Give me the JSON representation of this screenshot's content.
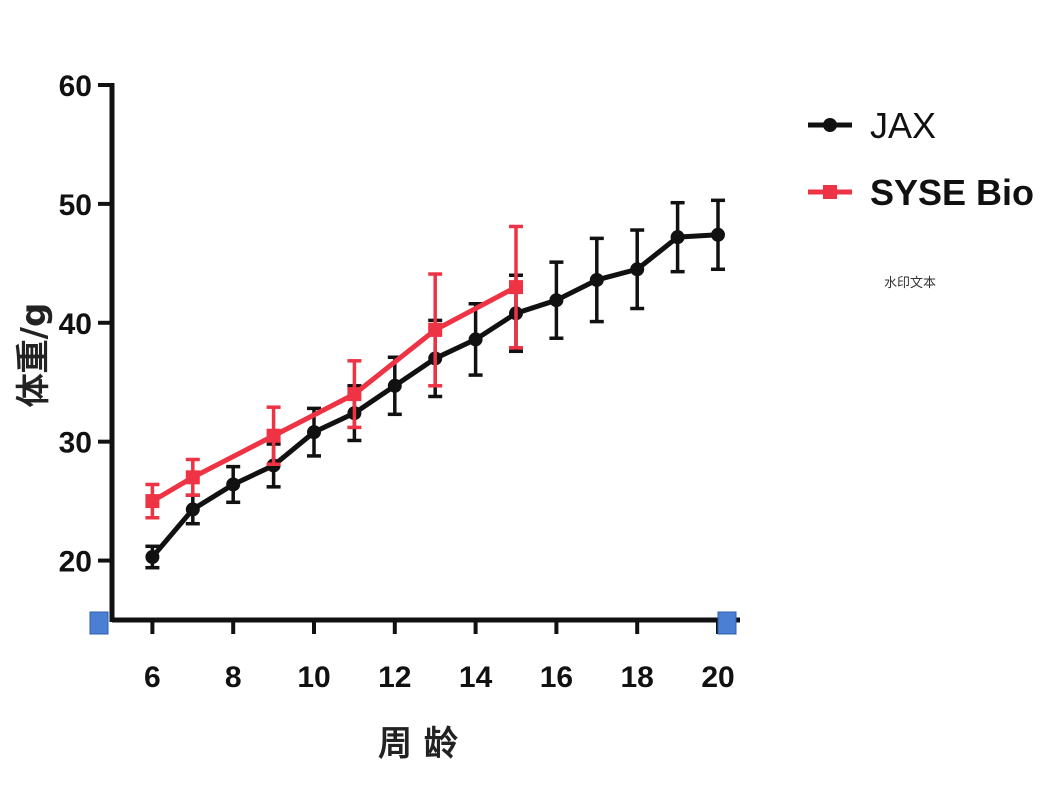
{
  "chart_data": {
    "type": "line",
    "xlabel": "周 龄",
    "ylabel": "体重/g",
    "x_ticks": [
      6,
      8,
      10,
      12,
      14,
      16,
      18,
      20
    ],
    "y_ticks": [
      20,
      30,
      40,
      50,
      60
    ],
    "xlim": [
      5,
      20
    ],
    "ylim": [
      15,
      60
    ],
    "legend_position": "top-right",
    "series": [
      {
        "name": "JAX",
        "color": "#111111",
        "marker": "circle",
        "x": [
          6,
          7,
          8,
          9,
          10,
          11,
          12,
          13,
          14,
          15,
          16,
          17,
          18,
          19,
          20
        ],
        "y": [
          20.3,
          24.3,
          26.4,
          28.0,
          30.8,
          32.4,
          34.7,
          37.0,
          38.6,
          40.8,
          41.9,
          43.6,
          44.5,
          47.2,
          47.4
        ],
        "err": [
          0.9,
          1.2,
          1.5,
          1.8,
          2.0,
          2.3,
          2.4,
          3.2,
          3.0,
          3.2,
          3.2,
          3.5,
          3.3,
          2.9,
          2.9
        ]
      },
      {
        "name": "SYSE Bio",
        "color": "#ee3344",
        "marker": "square",
        "x": [
          6,
          7,
          9,
          11,
          13,
          15
        ],
        "y": [
          25.0,
          27.0,
          30.5,
          34.0,
          39.4,
          43.0
        ],
        "err": [
          1.4,
          1.5,
          2.4,
          2.8,
          4.7,
          5.1
        ]
      }
    ],
    "annotation": "水印文本"
  }
}
